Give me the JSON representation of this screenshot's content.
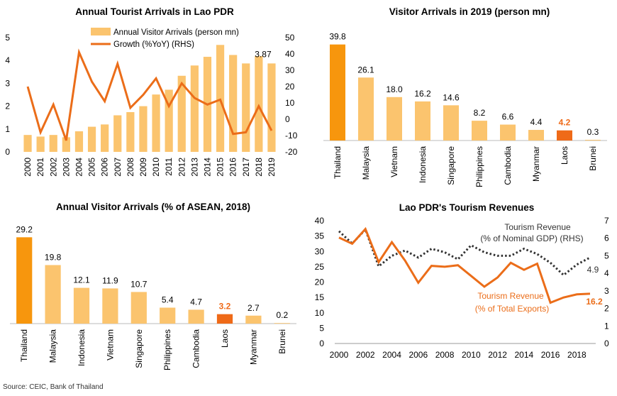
{
  "colors": {
    "bar_light": "#FBC46E",
    "bar_dark": "#F7960D",
    "bar_laos": "#EF6A18",
    "line_orange": "#EB6D19",
    "line_dark": "#333333",
    "laos_label": "#EF6A18"
  },
  "source": "Source: CEIC, Bank of Thailand",
  "chart_data": [
    {
      "id": "arrivals",
      "type": "bar",
      "title": "Annual Tourist Arrivals in Lao PDR",
      "categories": [
        "2000",
        "2001",
        "2002",
        "2003",
        "2004",
        "2005",
        "2006",
        "2007",
        "2008",
        "2009",
        "2010",
        "2011",
        "2012",
        "2013",
        "2014",
        "2015",
        "2016",
        "2017",
        "2018",
        "2019"
      ],
      "series": [
        {
          "name": "Annual Visitor Arrivals (person mn)",
          "type": "bar",
          "axis": "left",
          "values": [
            0.74,
            0.67,
            0.74,
            0.64,
            0.9,
            1.1,
            1.2,
            1.6,
            1.74,
            2.0,
            2.51,
            2.72,
            3.33,
            3.78,
            4.16,
            4.68,
            4.24,
            3.87,
            4.19,
            3.87
          ]
        },
        {
          "name": "Growth (%YoY) (RHS)",
          "type": "line",
          "axis": "right",
          "values": [
            20,
            -8,
            9,
            -13,
            41,
            23,
            11,
            34,
            7,
            15,
            25,
            8,
            22,
            13,
            9,
            12,
            -9,
            -8,
            8,
            -7
          ]
        }
      ],
      "annotations": [
        "3.87"
      ],
      "y_left": {
        "range": [
          0,
          5
        ],
        "ticks": [
          "0",
          "1",
          "2",
          "3",
          "4",
          "5"
        ]
      },
      "y_right": {
        "range": [
          -20,
          50
        ],
        "ticks": [
          "-20",
          "-10",
          "0",
          "10",
          "20",
          "30",
          "40",
          "50"
        ]
      }
    },
    {
      "id": "visitors2019",
      "type": "bar",
      "title": "Visitor Arrivals in 2019 (person mn)",
      "categories": [
        "Thailand",
        "Malaysia",
        "Vietnam",
        "Indonesia",
        "Singapore",
        "Philippines",
        "Cambodia",
        "Myanmar",
        "Laos",
        "Brunei"
      ],
      "values": [
        39.8,
        26.1,
        18.0,
        16.2,
        14.6,
        8.2,
        6.6,
        4.4,
        4.2,
        0.3
      ],
      "labels": [
        "39.8",
        "26.1",
        "18.0",
        "16.2",
        "14.6",
        "8.2",
        "6.6",
        "4.4",
        "4.2",
        "0.3"
      ],
      "ylim": [
        0,
        40
      ]
    },
    {
      "id": "asean2018",
      "type": "bar",
      "title": "Annual Visitor Arrivals (% of ASEAN, 2018)",
      "categories": [
        "Thailand",
        "Malaysia",
        "Indonesia",
        "Vietnam",
        "Singapore",
        "Philippines",
        "Cambodia",
        "Laos",
        "Myanmar",
        "Brunei"
      ],
      "values": [
        29.2,
        19.8,
        12.1,
        11.9,
        10.7,
        5.4,
        4.7,
        3.2,
        2.7,
        0.2
      ],
      "labels": [
        "29.2",
        "19.8",
        "12.1",
        "11.9",
        "10.7",
        "5.4",
        "4.7",
        "3.2",
        "2.7",
        "0.2"
      ],
      "ylim": [
        0,
        30
      ]
    },
    {
      "id": "revenues",
      "type": "line",
      "title": "Lao PDR's Tourism Revenues",
      "x_years": [
        2000,
        2001,
        2002,
        2003,
        2004,
        2005,
        2006,
        2007,
        2008,
        2009,
        2010,
        2011,
        2012,
        2013,
        2014,
        2015,
        2016,
        2017,
        2018,
        2019
      ],
      "x_ticks": [
        "2000",
        "2002",
        "2004",
        "2006",
        "2008",
        "2010",
        "2012",
        "2014",
        "2016",
        "2018"
      ],
      "series": [
        {
          "name_line1": "Tourism Revenue",
          "name_line2": "(% of Total Exports)",
          "axis": "left",
          "style": "solid",
          "values": [
            34.5,
            32.5,
            37.3,
            26.5,
            33.0,
            27.0,
            19.8,
            25.3,
            25.0,
            25.5,
            22.0,
            18.5,
            21.5,
            26.3,
            24.0,
            26.0,
            13.3,
            15.0,
            16.0,
            16.2
          ],
          "end_label": "16.2"
        },
        {
          "name_line1": "Tourism Revenue",
          "name_line2": "(% of Nominal GDP) (RHS)",
          "axis": "right",
          "style": "dotted",
          "values": [
            6.4,
            5.7,
            6.5,
            4.4,
            5.0,
            5.3,
            4.9,
            5.4,
            5.2,
            4.8,
            5.6,
            5.2,
            5.0,
            5.0,
            5.4,
            5.1,
            4.6,
            3.9,
            4.5,
            4.9
          ],
          "end_label": "4.9"
        }
      ],
      "y_left": {
        "range": [
          0,
          40
        ],
        "ticks": [
          "0",
          "5",
          "10",
          "15",
          "20",
          "25",
          "30",
          "35",
          "40"
        ]
      },
      "y_right": {
        "range": [
          0,
          7
        ],
        "ticks": [
          "0",
          "1",
          "2",
          "3",
          "4",
          "5",
          "6",
          "7"
        ]
      }
    }
  ]
}
